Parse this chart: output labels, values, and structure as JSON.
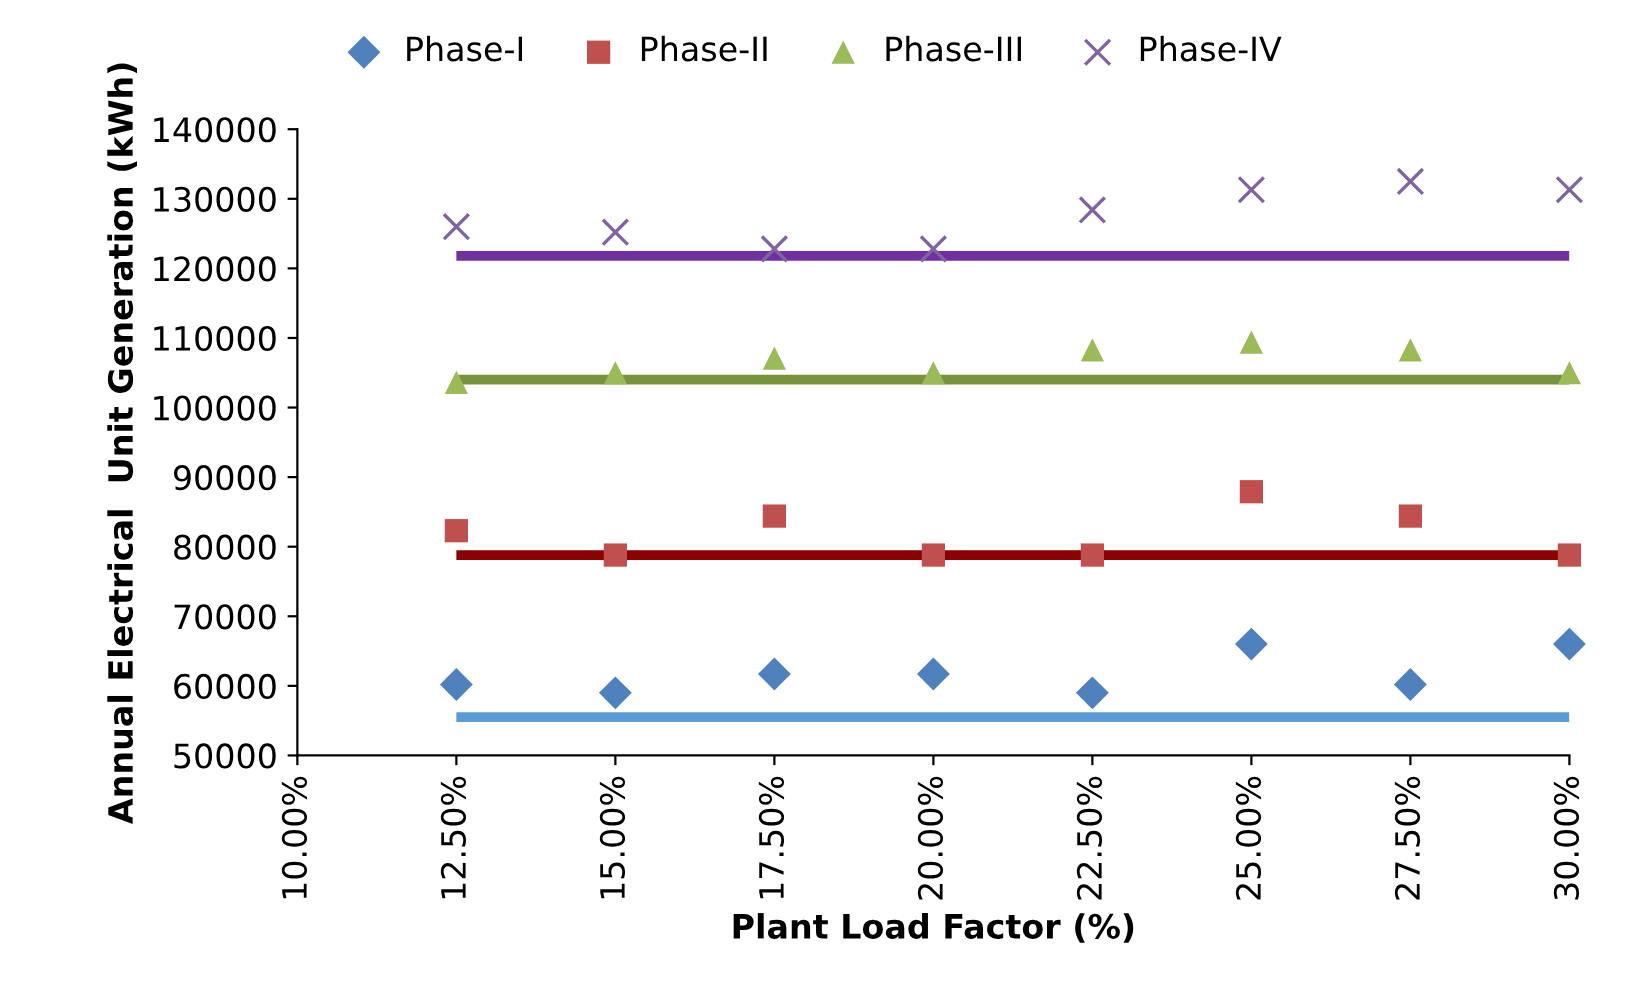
{
  "chart_data": {
    "type": "scatter",
    "xlabel": "Plant Load Factor (%)",
    "ylabel": "Annual Electrical  Unit Generation (kWh)",
    "xlim": [
      10,
      30
    ],
    "xticks": [
      {
        "value": 10,
        "label": "10.00%"
      },
      {
        "value": 12.5,
        "label": "12.50%"
      },
      {
        "value": 15,
        "label": "15.00%"
      },
      {
        "value": 17.5,
        "label": "17.50%"
      },
      {
        "value": 20,
        "label": "20.00%"
      },
      {
        "value": 22.5,
        "label": "22.50%"
      },
      {
        "value": 25,
        "label": "25.00%"
      },
      {
        "value": 27.5,
        "label": "27.50%"
      },
      {
        "value": 30,
        "label": "30.00%"
      }
    ],
    "ylim": [
      50000,
      140000
    ],
    "yticks": [
      50000,
      60000,
      70000,
      80000,
      90000,
      100000,
      110000,
      120000,
      130000,
      140000
    ],
    "x": [
      12.5,
      15,
      17.5,
      20,
      22.5,
      25,
      27.5,
      30
    ],
    "grid": false,
    "legend": "top",
    "series": [
      {
        "name": "Phase-I",
        "color": "#4f81bd",
        "marker": "diamond",
        "values": [
          60200,
          59000,
          61700,
          61700,
          59000,
          66000,
          60200,
          66000
        ]
      },
      {
        "name": "Phase-II",
        "color": "#c0504d",
        "marker": "square",
        "values": [
          82300,
          78800,
          84400,
          78800,
          78800,
          87900,
          84400,
          78800
        ]
      },
      {
        "name": "Phase-III",
        "color": "#9bbb59",
        "marker": "triangle",
        "values": [
          103600,
          105000,
          107100,
          105000,
          108300,
          109400,
          108300,
          105000
        ]
      },
      {
        "name": "Phase-IV",
        "color": "#8064a2",
        "marker": "cross",
        "values": [
          126000,
          125200,
          122800,
          122800,
          128400,
          131300,
          132500,
          131300
        ]
      },
      {
        "type": "line",
        "color": "#5b9bd5",
        "values": [
          55500,
          55500,
          55500,
          55500,
          55500,
          55500,
          55500,
          55500
        ]
      },
      {
        "type": "line",
        "color": "#8b0000",
        "values": [
          78800,
          78800,
          78800,
          78800,
          78800,
          78800,
          78800,
          78800
        ]
      },
      {
        "type": "line",
        "color": "#77933c",
        "values": [
          104000,
          104000,
          104000,
          104000,
          104000,
          104000,
          104000,
          104000
        ]
      },
      {
        "type": "line",
        "color": "#7030a0",
        "values": [
          121800,
          121800,
          121800,
          121800,
          121800,
          121800,
          121800,
          121800
        ]
      }
    ]
  }
}
